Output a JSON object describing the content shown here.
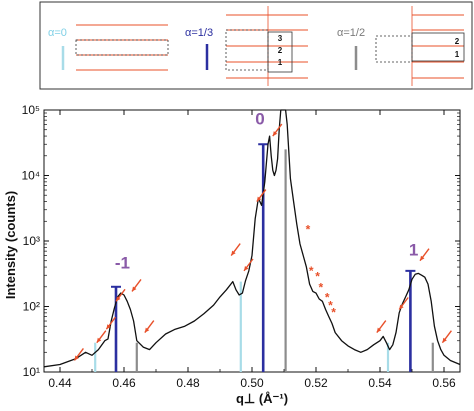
{
  "schematic": {
    "panels": [
      {
        "label": "α=0",
        "color": "#7fd0e6",
        "layers": []
      },
      {
        "label": "α=1/3",
        "color": "#2b2fa0",
        "layers": [
          "3",
          "2",
          "1"
        ]
      },
      {
        "label": "α=1/2",
        "color": "#7a7a7a",
        "layers": [
          "2",
          "1"
        ]
      }
    ]
  },
  "chart_data": {
    "type": "line",
    "title": "",
    "xlabel": "q⊥ (Å⁻¹)",
    "ylabel": "Intensity (counts)",
    "yscale": "log",
    "xlim": [
      0.435,
      0.565
    ],
    "ylim": [
      10,
      100000
    ],
    "x_ticks": [
      0.44,
      0.46,
      0.48,
      0.5,
      0.52,
      0.54,
      0.56
    ],
    "x_tick_labels": [
      "0.44",
      "0.46",
      "0.48",
      "0.50",
      "0.52",
      "0.54",
      "0.56"
    ],
    "y_ticks": [
      10,
      100,
      1000,
      10000,
      100000
    ],
    "y_tick_labels": [
      "10¹",
      "10²",
      "10³",
      "10⁴",
      "10⁵"
    ],
    "grid": false,
    "colors": {
      "curve": "#111111",
      "arrow": "#e8502a",
      "order_label": "#8a5aa8",
      "alpha0": "#a8dce8",
      "alpha13": "#2b2fa0",
      "alpha12": "#8c8c8c"
    },
    "series": [
      {
        "x": [
          0.435,
          0.44,
          0.445,
          0.448,
          0.45,
          0.452,
          0.454,
          0.455,
          0.456,
          0.457,
          0.458,
          0.459,
          0.46,
          0.461,
          0.462,
          0.463,
          0.464,
          0.466,
          0.468,
          0.47,
          0.473,
          0.476,
          0.479,
          0.482,
          0.485,
          0.488,
          0.49,
          0.492,
          0.494,
          0.495,
          0.496,
          0.497,
          0.498,
          0.499,
          0.5,
          0.501,
          0.502,
          0.503,
          0.504,
          0.505,
          0.5055,
          0.506,
          0.5065,
          0.507,
          0.5075,
          0.508,
          0.5085,
          0.509,
          0.51,
          0.5105,
          0.511,
          0.512,
          0.513,
          0.514,
          0.515,
          0.516,
          0.517,
          0.518,
          0.519,
          0.52,
          0.521,
          0.522,
          0.523,
          0.524,
          0.525,
          0.526,
          0.528,
          0.53,
          0.532,
          0.534,
          0.536,
          0.538,
          0.54,
          0.541,
          0.542,
          0.543,
          0.544,
          0.545,
          0.546,
          0.547,
          0.548,
          0.549,
          0.55,
          0.551,
          0.552,
          0.553,
          0.554,
          0.555,
          0.556,
          0.557,
          0.558,
          0.559,
          0.56,
          0.562,
          0.565
        ],
        "y": [
          12,
          13,
          16,
          20,
          18,
          22,
          30,
          32,
          60,
          95,
          140,
          160,
          150,
          120,
          90,
          60,
          30,
          24,
          22,
          28,
          38,
          45,
          50,
          60,
          78,
          105,
          140,
          180,
          240,
          180,
          150,
          160,
          250,
          350,
          600,
          2200,
          4500,
          3500,
          8000,
          30000,
          40000,
          20000,
          12000,
          10000,
          12000,
          18000,
          50000,
          200000,
          200000,
          120000,
          60000,
          9000,
          4000,
          1800,
          900,
          600,
          400,
          220,
          170,
          160,
          130,
          120,
          90,
          70,
          55,
          40,
          30,
          25,
          22,
          20,
          22,
          26,
          30,
          35,
          28,
          22,
          26,
          40,
          80,
          110,
          140,
          180,
          260,
          310,
          320,
          300,
          280,
          220,
          120,
          50,
          30,
          22,
          18,
          15,
          13
        ]
      }
    ],
    "order_labels": [
      {
        "text": "-1",
        "x": 0.4595,
        "y": 380
      },
      {
        "text": "0",
        "x": 0.5025,
        "y": 60000
      },
      {
        "text": "1",
        "x": 0.5505,
        "y": 600
      }
    ],
    "sticks": [
      {
        "group": "alpha0",
        "x": 0.451,
        "y": 28
      },
      {
        "group": "alpha0",
        "x": 0.4965,
        "y": 240
      },
      {
        "group": "alpha0",
        "x": 0.5425,
        "y": 28
      },
      {
        "group": "alpha13",
        "x": 0.4575,
        "y": 200
      },
      {
        "group": "alpha13",
        "x": 0.5035,
        "y": 30000
      },
      {
        "group": "alpha13",
        "x": 0.5495,
        "y": 350
      },
      {
        "group": "alpha12",
        "x": 0.464,
        "y": 28
      },
      {
        "group": "alpha12",
        "x": 0.5105,
        "y": 25000
      },
      {
        "group": "alpha12",
        "x": 0.5565,
        "y": 28
      }
    ],
    "arrows": [
      {
        "x": 0.4445,
        "y": 15
      },
      {
        "x": 0.4515,
        "y": 28
      },
      {
        "x": 0.4545,
        "y": 45
      },
      {
        "x": 0.4575,
        "y": 120
      },
      {
        "x": 0.4625,
        "y": 170
      },
      {
        "x": 0.4665,
        "y": 40
      },
      {
        "x": 0.4935,
        "y": 600
      },
      {
        "x": 0.4975,
        "y": 350
      },
      {
        "x": 0.5015,
        "y": 4000
      },
      {
        "x": 0.5065,
        "y": 40000
      },
      {
        "x": 0.539,
        "y": 40
      },
      {
        "x": 0.546,
        "y": 90
      },
      {
        "x": 0.5525,
        "y": 500
      },
      {
        "x": 0.5595,
        "y": 28
      }
    ],
    "stars": [
      {
        "x": 0.5175,
        "y": 1300
      },
      {
        "x": 0.5185,
        "y": 300
      },
      {
        "x": 0.5205,
        "y": 250
      },
      {
        "x": 0.5215,
        "y": 170
      },
      {
        "x": 0.5235,
        "y": 120
      },
      {
        "x": 0.5245,
        "y": 90
      },
      {
        "x": 0.5255,
        "y": 70
      }
    ]
  }
}
